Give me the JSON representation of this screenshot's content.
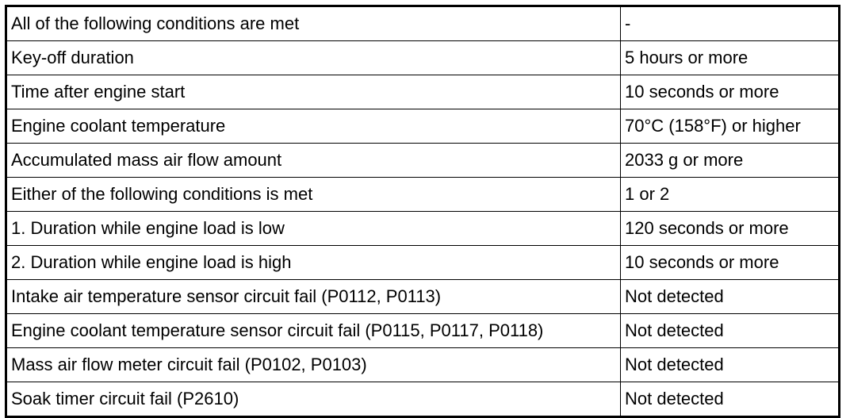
{
  "table": {
    "rows": [
      [
        "All of the following conditions are met",
        "-"
      ],
      [
        "Key-off duration",
        "5 hours or more"
      ],
      [
        "Time after engine start",
        "10 seconds or more"
      ],
      [
        "Engine coolant temperature",
        "70°C (158°F) or higher"
      ],
      [
        "Accumulated mass air flow amount",
        "2033 g or more"
      ],
      [
        "Either of the following conditions is met",
        "1 or 2"
      ],
      [
        "1. Duration while engine load is low",
        "120 seconds or more"
      ],
      [
        "2. Duration while engine load is high",
        "10 seconds or more"
      ],
      [
        "Intake air temperature sensor circuit fail (P0112, P0113)",
        "Not detected"
      ],
      [
        "Engine coolant temperature sensor circuit fail (P0115, P0117, P0118)",
        "Not detected"
      ],
      [
        "Mass air flow meter circuit fail (P0102, P0103)",
        "Not detected"
      ],
      [
        "Soak timer circuit fail (P2610)",
        "Not detected"
      ]
    ]
  }
}
